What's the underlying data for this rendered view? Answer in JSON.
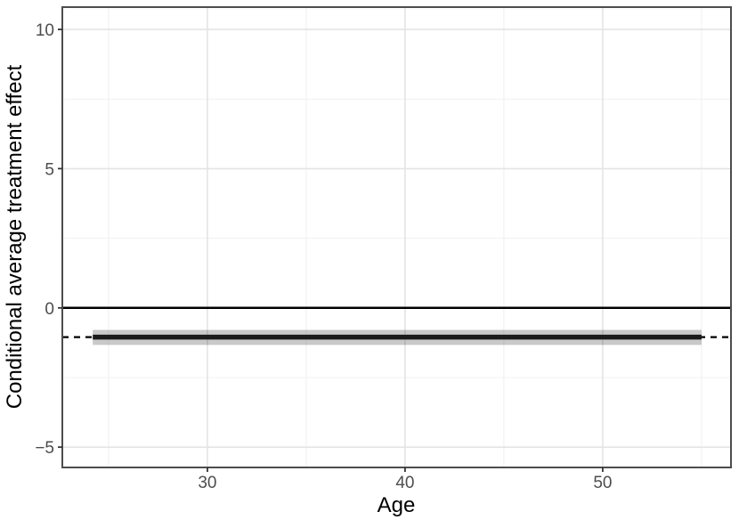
{
  "chart_data": {
    "type": "line",
    "title": "",
    "xlabel": "Age",
    "ylabel": "Conditional average treatment effect",
    "xlim": [
      22.66,
      56.49
    ],
    "ylim": [
      -5.73,
      10.8
    ],
    "x_major_ticks": [
      30,
      40,
      50
    ],
    "y_major_ticks": [
      -5,
      0,
      5,
      10
    ],
    "x_minor_ticks": [
      25,
      35,
      45,
      55
    ],
    "y_minor_ticks": [
      -2.5,
      2.5,
      7.5
    ],
    "grid": "on",
    "legend": "none",
    "reference_lines": [
      {
        "name": "zero-line",
        "y": 0,
        "style": "solid",
        "width": 2.5,
        "color": "#000000",
        "span": "panel"
      },
      {
        "name": "true-effect-line",
        "y": -1.05,
        "style": "dashed",
        "width": 2.2,
        "color": "#000000",
        "span": "panel"
      }
    ],
    "series": [
      {
        "name": "cate-estimate",
        "type": "line",
        "x": [
          24.2,
          55.0
        ],
        "y": [
          -1.05,
          -1.05
        ],
        "width": 5.5,
        "color": "#1b1b1b"
      }
    ],
    "confidence_band": {
      "name": "cate-confidence-band",
      "x": [
        24.2,
        55.0
      ],
      "low": -1.33,
      "high": -0.79,
      "color": "rgba(0,0,0,0.21)"
    },
    "colors": {
      "panel_background": "#ffffff",
      "panel_border": "#4d4d4d",
      "grid_major": "#e4e4e4",
      "grid_minor": "#f0f0f0",
      "tick_mark": "#333333",
      "tick_label": "#4d4d4d",
      "axis_title": "#000000"
    }
  }
}
